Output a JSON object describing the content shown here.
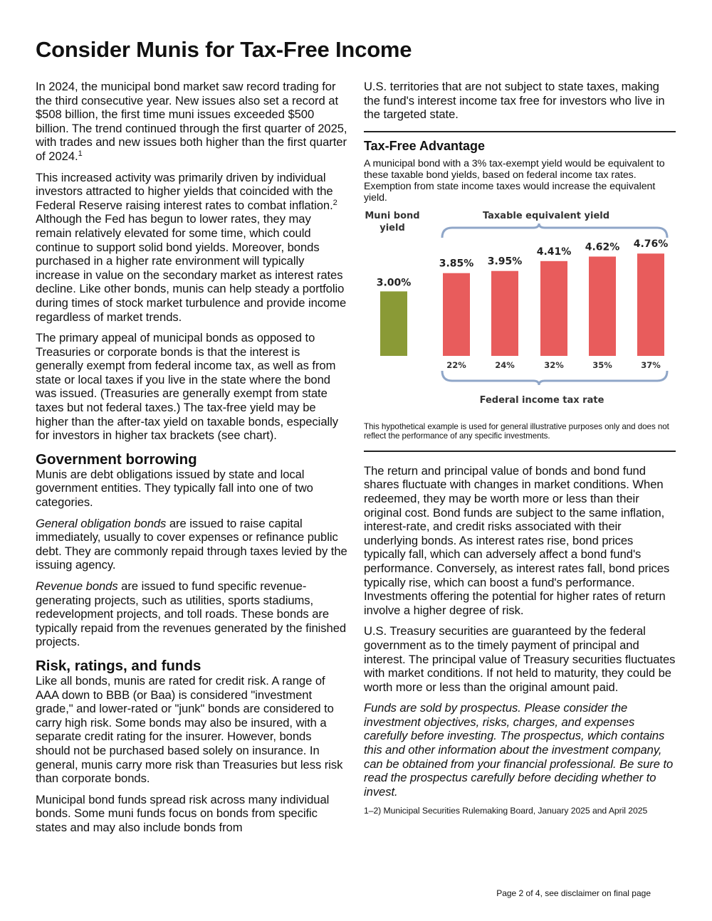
{
  "title": "Consider Munis for Tax-Free Income",
  "left": {
    "p1": "In 2024, the municipal bond market saw record trading for the third consecutive year. New issues also set a record at $508 billion, the first time muni issues exceeded $500 billion. The trend continued through the first quarter of 2025, with trades and new issues both higher than the first quarter of 2024.",
    "p1_note": "1",
    "p2a": "This increased activity was primarily driven by individual investors attracted to higher yields that coincided with the Federal Reserve raising interest rates to combat inflation.",
    "p2_note": "2",
    "p2b": " Although the Fed has begun to lower rates, they may remain relatively elevated for some time, which could continue to support solid bond yields. Moreover, bonds purchased in a higher rate environment will typically increase in value on the secondary market as interest rates decline. Like other bonds, munis can help steady a portfolio during times of stock market turbulence and provide income regardless of market trends.",
    "p3": "The primary appeal of municipal bonds as opposed to Treasuries or corporate bonds is that the interest is generally exempt from federal income tax, as well as from state or local taxes if you live in the state where the bond was issued. (Treasuries are generally exempt from state taxes but not federal taxes.) The tax-free yield may be higher than the after-tax yield on taxable bonds, especially for investors in higher tax brackets (see chart).",
    "h_gov": "Government borrowing",
    "p4": "Munis are debt obligations issued by state and local government entities. They typically fall into one of two categories.",
    "p5_em": "General obligation bonds",
    "p5": " are issued to raise capital immediately, usually to cover expenses or refinance public debt. They are commonly repaid through taxes levied by the issuing agency.",
    "p6_em": "Revenue bonds",
    "p6": " are issued to fund specific revenue-generating projects, such as utilities, sports stadiums, redevelopment projects, and toll roads. These bonds are typically repaid from the revenues generated by the finished projects.",
    "h_risk": "Risk, ratings, and funds",
    "p7": "Like all bonds, munis are rated for credit risk. A range of AAA down to BBB (or Baa) is considered \"investment grade,\" and lower-rated or \"junk\" bonds are considered to carry high risk. Some bonds may also be insured, with a separate credit rating for the insurer. However, bonds should not be purchased based solely on insurance. In general, munis carry more risk than Treasuries but less risk than corporate bonds.",
    "p8": "Municipal bond funds spread risk across many individual bonds. Some muni funds focus on bonds from specific states and may also include bonds from"
  },
  "right": {
    "p_cont": "U.S. territories that are not subject to state taxes, making the fund's interest income tax free for investors who live in the targeted state.",
    "box_title": "Tax-Free Advantage",
    "box_intro": "A municipal bond with a 3% tax-exempt yield would be equivalent to these taxable bond yields, based on federal income tax rates. Exemption from state income taxes would increase the equivalent yield.",
    "disclaimer": "This hypothetical example is used for general illustrative purposes only and does not reflect the performance of any specific investments.",
    "p9": "The return and principal value of bonds and bond fund shares fluctuate with changes in market conditions. When redeemed, they may be worth more or less than their original cost. Bond funds are subject to the same inflation, interest-rate, and credit risks associated with their underlying bonds. As interest rates rise, bond prices typically fall, which can adversely affect a bond fund's performance. Conversely, as interest rates fall, bond prices typically rise, which can boost a fund's performance. Investments offering the potential for higher rates of return involve a higher degree of risk.",
    "p10": "U.S. Treasury securities are guaranteed by the federal government as to the timely payment of principal and interest. The principal value of Treasury securities fluctuates with market conditions. If not held to maturity, they could be worth more or less than the original amount paid.",
    "p11": "Funds are sold by prospectus. Please consider the investment objectives, risks, charges, and expenses carefully before investing. The prospectus, which contains this and other information about the investment company, can be obtained from your financial professional. Be sure to read the prospectus carefully before deciding whether to invest.",
    "footnote": "1–2) Municipal Securities Rulemaking Board, January 2025 and April 2025"
  },
  "footer": "Page 2 of 4, see disclaimer on final page",
  "chart_data": {
    "type": "bar",
    "muni_label_line1": "Muni bond",
    "muni_label_line2": "yield",
    "taxable_label": "Taxable equivalent yield",
    "xlabel": "Federal income tax rate",
    "muni": {
      "value": 3.0,
      "label": "3.00%",
      "color": "#8a9a36"
    },
    "taxable_color": "#e85c5c",
    "categories": [
      "22%",
      "24%",
      "32%",
      "35%",
      "37%"
    ],
    "values": [
      3.85,
      3.95,
      4.41,
      4.62,
      4.76
    ],
    "value_labels": [
      "3.85%",
      "3.95%",
      "4.41%",
      "4.62%",
      "4.76%"
    ]
  }
}
